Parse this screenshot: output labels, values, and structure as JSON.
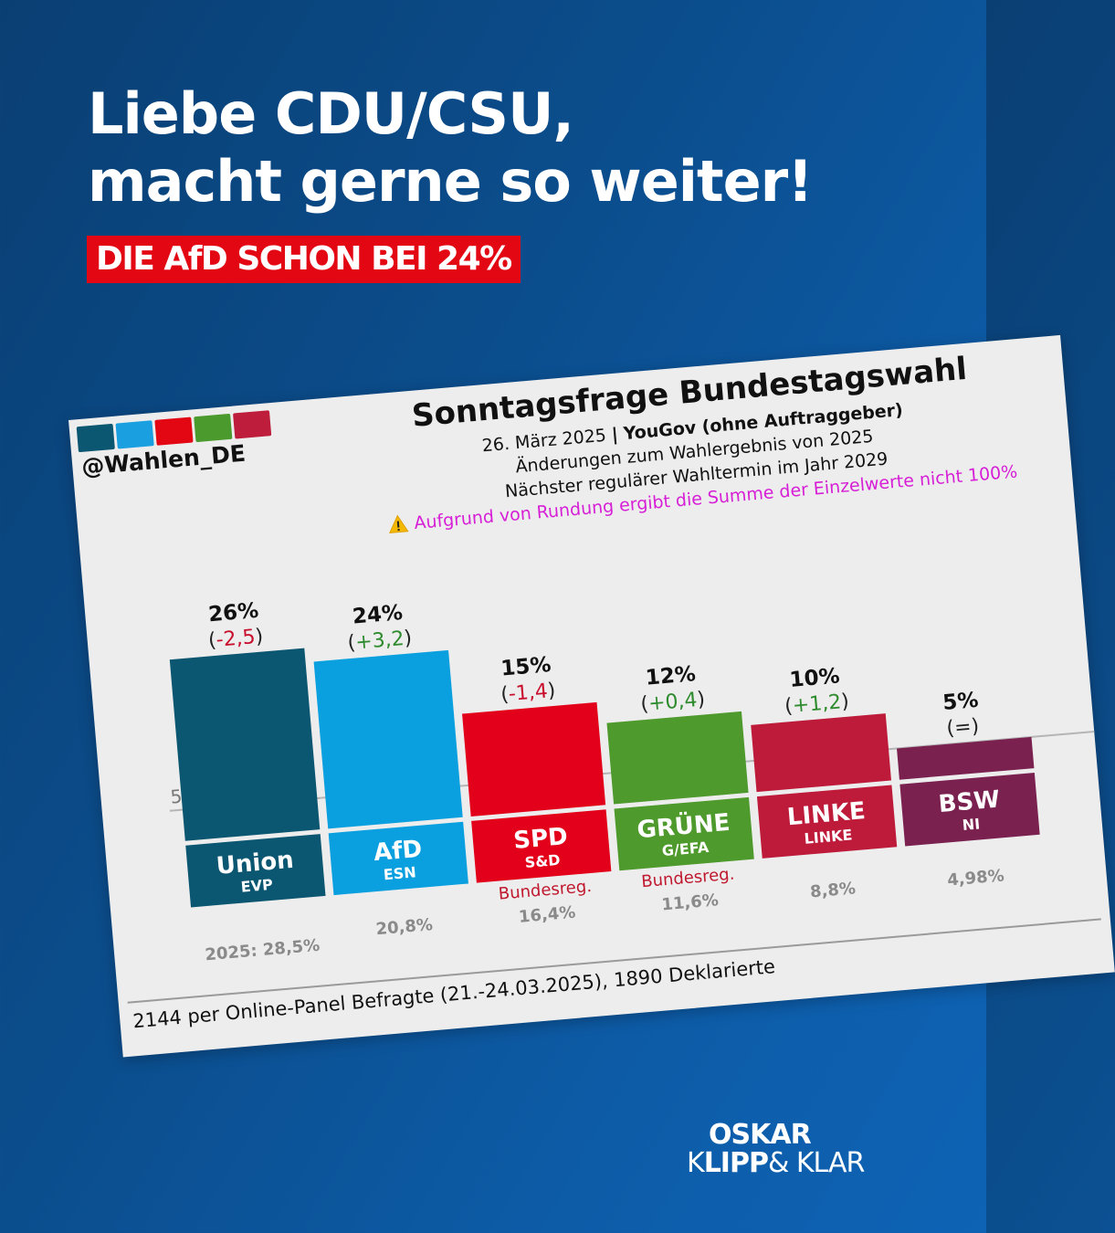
{
  "header": {
    "headline_line1": "Liebe CDU/CSU,",
    "headline_line2": "macht gerne so weiter!",
    "badge": "DIE AfD SCHON BEI 24%",
    "badge_color": "#e30613"
  },
  "card": {
    "handle": "@Wahlen_DE",
    "brand_colors": [
      "#0b5670",
      "#1a9fe0",
      "#e30613",
      "#4a9a2e",
      "#be1e3c"
    ],
    "title": "Sonntagsfrage Bundestagswahl",
    "date": "26. März 2025",
    "separator": "|",
    "institute": "YouGov (ohne Auftraggeber)",
    "subtitle1": "Änderungen zum Wahlergebnis von 2025",
    "subtitle2": "Nächster regulärer Wahltermin im Jahr 2029",
    "warning_icon": "warning-triangle-icon",
    "warning": "Aufgrund von Rundung ergibt die Summe der Einzelwerte nicht 100%",
    "footer": "2144 per Online-Panel Befragte (21.-24.03.2025), 1890 Deklarierte"
  },
  "chart_data": {
    "type": "bar",
    "title": "Sonntagsfrage Bundestagswahl",
    "categories": [
      "Union",
      "AfD",
      "SPD",
      "GRÜNE",
      "LINKE",
      "BSW"
    ],
    "groups": [
      "EVP",
      "ESN",
      "S&D",
      "G/EFA",
      "LINKE",
      "NI"
    ],
    "values": [
      26,
      24,
      15,
      12,
      10,
      5
    ],
    "value_labels": [
      "26%",
      "24%",
      "15%",
      "12%",
      "10%",
      "5%"
    ],
    "changes": [
      "-2,5",
      "+3,2",
      "-1,4",
      "+0,4",
      "+1,2",
      "="
    ],
    "change_colors": [
      "#c8102e",
      "#2e8b2e",
      "#c8102e",
      "#2e8b2e",
      "#2e8b2e",
      "#222222"
    ],
    "colors": [
      "#0b5670",
      "#0aa0e0",
      "#e3001b",
      "#4e9a2c",
      "#be1a3a",
      "#7a2150"
    ],
    "previous_election": [
      "2025: 28,5%",
      "20,8%",
      "16,4%",
      "11,6%",
      "8,8%",
      "4,98%"
    ],
    "government_tags": [
      "",
      "",
      "Bundesreg.",
      "Bundesreg.",
      "",
      ""
    ],
    "threshold_label": "5%",
    "threshold": 5,
    "ylim": [
      0,
      28
    ],
    "xlabel": "",
    "ylabel": ""
  },
  "logo": {
    "line1": "OSKAR",
    "line2_a": "K",
    "line2_b": "LIPP",
    "line2_c": "& KLAR"
  }
}
